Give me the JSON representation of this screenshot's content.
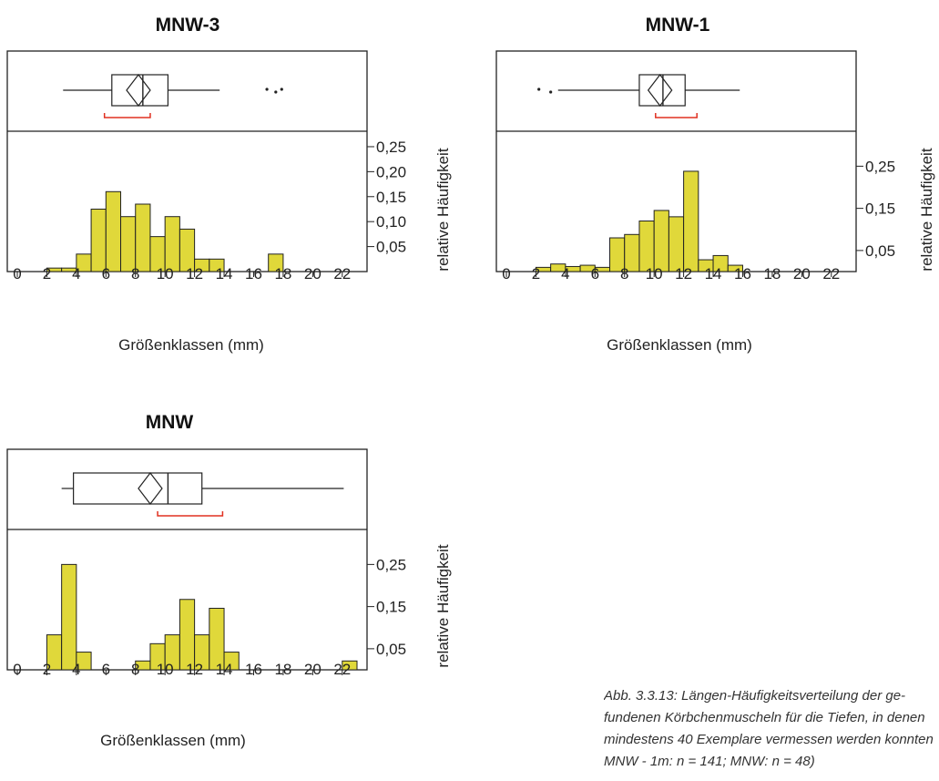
{
  "colors": {
    "bar_fill": "#e0d83a",
    "bar_stroke": "#222222",
    "notch_marker": "#e03020",
    "frame": "#222222"
  },
  "chart_data": [
    {
      "type": "bar",
      "title": "MNW-3",
      "xlabel": "Größenklassen (mm)",
      "ylabel": "relative Häufigkeit",
      "x_ticks": [
        "0",
        "2",
        "4",
        "6",
        "8",
        "10",
        "12",
        "14",
        "16",
        "18",
        "20",
        "22"
      ],
      "xlim": [
        0,
        23
      ],
      "y_ticks": [
        "0,05",
        "0,10",
        "0,15",
        "0,20",
        "0,25"
      ],
      "y_tick_values": [
        0.05,
        0.1,
        0.15,
        0.2,
        0.25
      ],
      "ylim": [
        0,
        0.27
      ],
      "bin_width": 1,
      "bins": [
        {
          "x": 2,
          "y": 0.007
        },
        {
          "x": 3,
          "y": 0.007
        },
        {
          "x": 4,
          "y": 0.035
        },
        {
          "x": 5,
          "y": 0.125
        },
        {
          "x": 6,
          "y": 0.16
        },
        {
          "x": 7,
          "y": 0.11
        },
        {
          "x": 8,
          "y": 0.135
        },
        {
          "x": 9,
          "y": 0.07
        },
        {
          "x": 10,
          "y": 0.11
        },
        {
          "x": 11,
          "y": 0.085
        },
        {
          "x": 12,
          "y": 0.025
        },
        {
          "x": 13,
          "y": 0.025
        },
        {
          "x": 17,
          "y": 0.035
        }
      ],
      "boxplot": {
        "whisker_low": 3.1,
        "q1": 6.4,
        "median": 8.5,
        "mean": 8.2,
        "q3": 10.2,
        "whisker_high": 13.7,
        "outliers": [
          16.9,
          17.5,
          17.9
        ],
        "notch_bracket": [
          5.9,
          9.0
        ]
      }
    },
    {
      "type": "bar",
      "title": "MNW-1",
      "xlabel": "Größenklassen (mm)",
      "ylabel": "relative Häufigkeit",
      "x_ticks": [
        "0",
        "2",
        "4",
        "6",
        "8",
        "10",
        "12",
        "14",
        "16",
        "18",
        "20",
        "22"
      ],
      "xlim": [
        0,
        23
      ],
      "y_ticks": [
        "0,05",
        "0,15",
        "0,25"
      ],
      "y_tick_values": [
        0.05,
        0.15,
        0.25
      ],
      "ylim": [
        0,
        0.32
      ],
      "bin_width": 1,
      "bins": [
        {
          "x": 2,
          "y": 0.01
        },
        {
          "x": 3,
          "y": 0.018
        },
        {
          "x": 4,
          "y": 0.012
        },
        {
          "x": 5,
          "y": 0.015
        },
        {
          "x": 6,
          "y": 0.01
        },
        {
          "x": 7,
          "y": 0.08
        },
        {
          "x": 8,
          "y": 0.088
        },
        {
          "x": 9,
          "y": 0.12
        },
        {
          "x": 10,
          "y": 0.145
        },
        {
          "x": 11,
          "y": 0.13
        },
        {
          "x": 12,
          "y": 0.238
        },
        {
          "x": 13,
          "y": 0.028
        },
        {
          "x": 14,
          "y": 0.038
        },
        {
          "x": 15,
          "y": 0.015
        }
      ],
      "boxplot": {
        "whisker_low": 3.5,
        "q1": 9.0,
        "median": 10.6,
        "mean": 10.4,
        "q3": 12.1,
        "whisker_high": 15.8,
        "outliers": [
          2.2,
          3.0
        ],
        "notch_bracket": [
          10.1,
          12.9
        ]
      }
    },
    {
      "type": "bar",
      "title": "MNW",
      "xlabel": "Größenklassen (mm)",
      "ylabel": "relative Häufigkeit",
      "x_ticks": [
        "0",
        "2",
        "4",
        "6",
        "8",
        "10",
        "12",
        "14",
        "16",
        "18",
        "20",
        "22"
      ],
      "xlim": [
        0,
        23
      ],
      "y_ticks": [
        "0,05",
        "0,15",
        "0,25"
      ],
      "y_tick_values": [
        0.05,
        0.15,
        0.25
      ],
      "ylim": [
        0,
        0.32
      ],
      "bin_width": 1,
      "bins": [
        {
          "x": 2,
          "y": 0.083
        },
        {
          "x": 3,
          "y": 0.25
        },
        {
          "x": 4,
          "y": 0.042
        },
        {
          "x": 8,
          "y": 0.021
        },
        {
          "x": 9,
          "y": 0.062
        },
        {
          "x": 10,
          "y": 0.083
        },
        {
          "x": 11,
          "y": 0.167
        },
        {
          "x": 12,
          "y": 0.083
        },
        {
          "x": 13,
          "y": 0.146
        },
        {
          "x": 14,
          "y": 0.042
        },
        {
          "x": 22,
          "y": 0.021
        }
      ],
      "boxplot": {
        "whisker_low": 3.0,
        "q1": 3.8,
        "median": 10.2,
        "mean": 9.0,
        "q3": 12.5,
        "whisker_high": 22.1,
        "outliers": [],
        "notch_bracket": [
          9.5,
          13.9
        ]
      }
    }
  ],
  "caption": {
    "lines": [
      "Abb. 3.3.13: Längen-Häufigkeitsverteilung der ge-",
      "fundenen Körbchenmuscheln für die Tiefen, in denen",
      "mindestens 40 Exemplare vermessen werden konnten",
      "MNW - 1m: n = 141; MNW: n = 48)"
    ]
  }
}
